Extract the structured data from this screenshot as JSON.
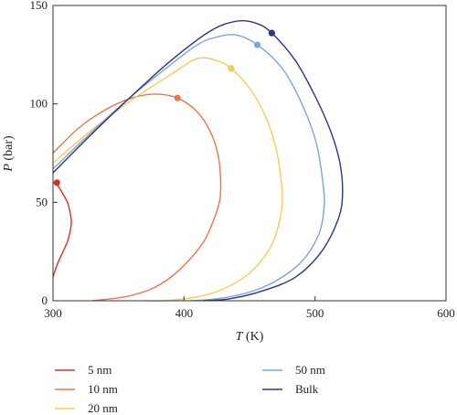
{
  "chart_data": {
    "type": "line",
    "xlabel": {
      "italic": "T",
      "rest": " (K)"
    },
    "ylabel": {
      "italic": "P",
      "rest": " (bar)"
    },
    "xlim": [
      300,
      600
    ],
    "ylim": [
      0,
      150
    ],
    "xticks": [
      "300",
      "400",
      "500",
      "600"
    ],
    "yticks": [
      "0",
      "50",
      "100",
      "150"
    ],
    "legend_position": "below",
    "series": [
      {
        "name": "5 nm",
        "color": "#d7302a",
        "critical_point": [
          303,
          60
        ],
        "x": [
          300,
          303,
          307,
          311,
          313,
          314,
          313,
          311,
          307,
          303,
          300
        ],
        "y": [
          12,
          18,
          24,
          30,
          35,
          40,
          45,
          50,
          55,
          59,
          60
        ]
      },
      {
        "name": "10 nm",
        "color": "#e8764e",
        "critical_point": [
          395,
          103
        ],
        "x": [
          300,
          320,
          340,
          360,
          378,
          395,
          410,
          420,
          426,
          428,
          427,
          422,
          415,
          403,
          390,
          375,
          355,
          330
        ],
        "y": [
          75,
          88,
          97,
          103,
          105,
          103,
          96,
          86,
          74,
          60,
          50,
          40,
          30,
          20,
          12,
          6,
          2,
          0
        ]
      },
      {
        "name": "20 nm",
        "color": "#f7cb5a",
        "critical_point": [
          436,
          118
        ],
        "x": [
          300,
          330,
          360,
          390,
          410,
          425,
          436,
          450,
          462,
          470,
          474,
          475,
          472,
          465,
          450,
          430,
          410,
          385,
          370
        ],
        "y": [
          70,
          87,
          102,
          115,
          123,
          122,
          118,
          108,
          94,
          78,
          62,
          50,
          38,
          26,
          14,
          6,
          2,
          0,
          0
        ]
      },
      {
        "name": "50 nm",
        "color": "#7ea6d8",
        "critical_point": [
          456,
          130
        ],
        "x": [
          300,
          330,
          360,
          390,
          410,
          425,
          440,
          456,
          475,
          490,
          501,
          506,
          507,
          503,
          490,
          470,
          448,
          425,
          405
        ],
        "y": [
          67,
          86,
          104,
          120,
          130,
          134,
          135,
          130,
          118,
          100,
          80,
          60,
          48,
          34,
          20,
          10,
          4,
          1,
          0
        ]
      },
      {
        "name": "Bulk",
        "color": "#2e3784",
        "critical_point": [
          467,
          136
        ],
        "x": [
          300,
          330,
          360,
          390,
          420,
          440,
          455,
          467,
          485,
          500,
          512,
          519,
          521,
          518,
          505,
          485,
          460,
          435,
          415
        ],
        "y": [
          65,
          85,
          104,
          122,
          137,
          142,
          141,
          136,
          122,
          104,
          86,
          70,
          55,
          42,
          25,
          12,
          5,
          1,
          0
        ]
      }
    ]
  }
}
